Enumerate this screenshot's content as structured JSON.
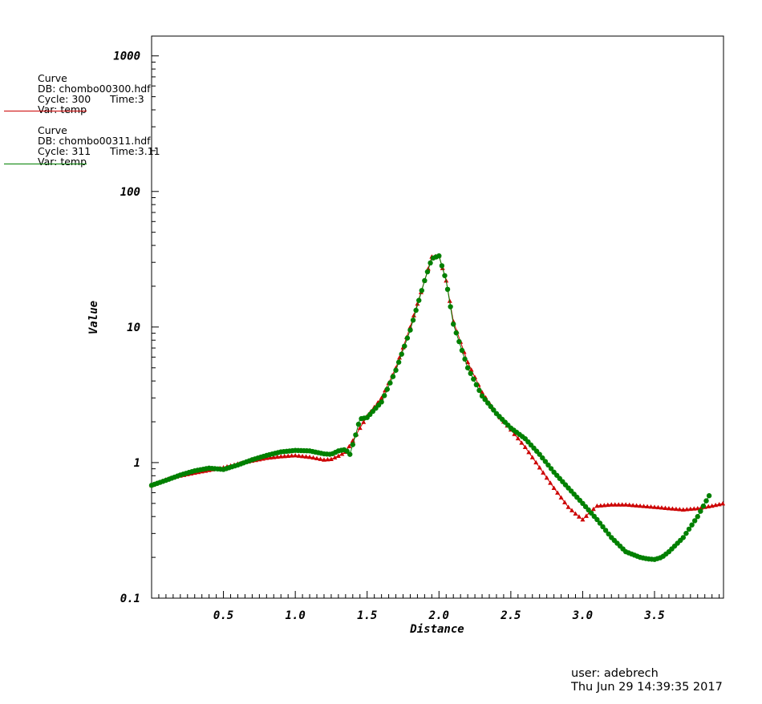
{
  "legend": [
    {
      "title": "Curve",
      "db": "DB: chombo00300.hdf",
      "cycle": "Cycle: 300",
      "time": "Time:3",
      "var": "Var: temp",
      "color": "#cc0000"
    },
    {
      "title": "Curve",
      "db": "DB: chombo00311.hdf",
      "cycle": "Cycle: 311",
      "time": "Time:3.11",
      "var": "Var: temp",
      "color": "#008000"
    }
  ],
  "footer": {
    "user": "user: adebrech",
    "timestamp": "Thu Jun 29 14:39:35 2017"
  },
  "chart_data": {
    "type": "line",
    "xlabel": "Distance",
    "ylabel": "Value",
    "xlim": [
      0,
      3.98
    ],
    "ylim": [
      0.1,
      1400
    ],
    "yscale": "log",
    "grid": false,
    "legend_position": "top-left, outside plot",
    "x_ticks": [
      0.5,
      1.0,
      1.5,
      2.0,
      2.5,
      3.0,
      3.5
    ],
    "x_tick_labels": [
      "0.5",
      "1.0",
      "1.5",
      "2.0",
      "2.5",
      "3.0",
      "3.5"
    ],
    "y_ticks": [
      0.1,
      1,
      10,
      100,
      1000
    ],
    "y_tick_labels": [
      "0.1",
      "1",
      "10",
      "100",
      "1000"
    ],
    "series": [
      {
        "color": "#cc0000",
        "marker": "triangle",
        "x": [
          0.0,
          0.1,
          0.2,
          0.3,
          0.4,
          0.5,
          0.6,
          0.7,
          0.8,
          0.9,
          1.0,
          1.1,
          1.2,
          1.25,
          1.3,
          1.35,
          1.4,
          1.45,
          1.5,
          1.6,
          1.7,
          1.8,
          1.9,
          1.95,
          2.0,
          2.05,
          2.1,
          2.2,
          2.3,
          2.4,
          2.5,
          2.6,
          2.7,
          2.8,
          2.9,
          2.95,
          3.0,
          3.05,
          3.1,
          3.2,
          3.3,
          3.4,
          3.5,
          3.6,
          3.7,
          3.8,
          3.9,
          3.98
        ],
        "y": [
          0.68,
          0.75,
          0.8,
          0.84,
          0.88,
          0.92,
          0.98,
          1.03,
          1.08,
          1.11,
          1.13,
          1.1,
          1.05,
          1.06,
          1.12,
          1.2,
          1.45,
          1.8,
          2.2,
          3.0,
          5.0,
          10.0,
          22.0,
          33.0,
          33.5,
          22.0,
          11.0,
          5.5,
          3.3,
          2.3,
          1.75,
          1.3,
          0.92,
          0.65,
          0.47,
          0.42,
          0.38,
          0.43,
          0.48,
          0.49,
          0.49,
          0.48,
          0.47,
          0.46,
          0.45,
          0.46,
          0.48,
          0.5
        ]
      },
      {
        "color": "#008000",
        "marker": "circle",
        "x": [
          0.0,
          0.1,
          0.2,
          0.3,
          0.4,
          0.5,
          0.6,
          0.7,
          0.8,
          0.9,
          1.0,
          1.1,
          1.2,
          1.25,
          1.3,
          1.35,
          1.38,
          1.42,
          1.45,
          1.5,
          1.6,
          1.7,
          1.8,
          1.9,
          1.95,
          2.0,
          2.05,
          2.1,
          2.2,
          2.3,
          2.4,
          2.5,
          2.6,
          2.7,
          2.8,
          2.9,
          3.0,
          3.1,
          3.2,
          3.3,
          3.4,
          3.45,
          3.5,
          3.55,
          3.6,
          3.7,
          3.8,
          3.85,
          3.88
        ],
        "y": [
          0.68,
          0.74,
          0.81,
          0.87,
          0.91,
          0.89,
          0.96,
          1.05,
          1.13,
          1.2,
          1.23,
          1.22,
          1.16,
          1.15,
          1.22,
          1.25,
          1.15,
          1.6,
          2.1,
          2.15,
          2.8,
          4.8,
          9.5,
          22.0,
          32.0,
          33.5,
          22.0,
          10.5,
          5.0,
          3.1,
          2.3,
          1.8,
          1.5,
          1.15,
          0.85,
          0.65,
          0.5,
          0.38,
          0.28,
          0.22,
          0.2,
          0.195,
          0.193,
          0.2,
          0.22,
          0.28,
          0.4,
          0.5,
          0.57
        ]
      }
    ]
  }
}
